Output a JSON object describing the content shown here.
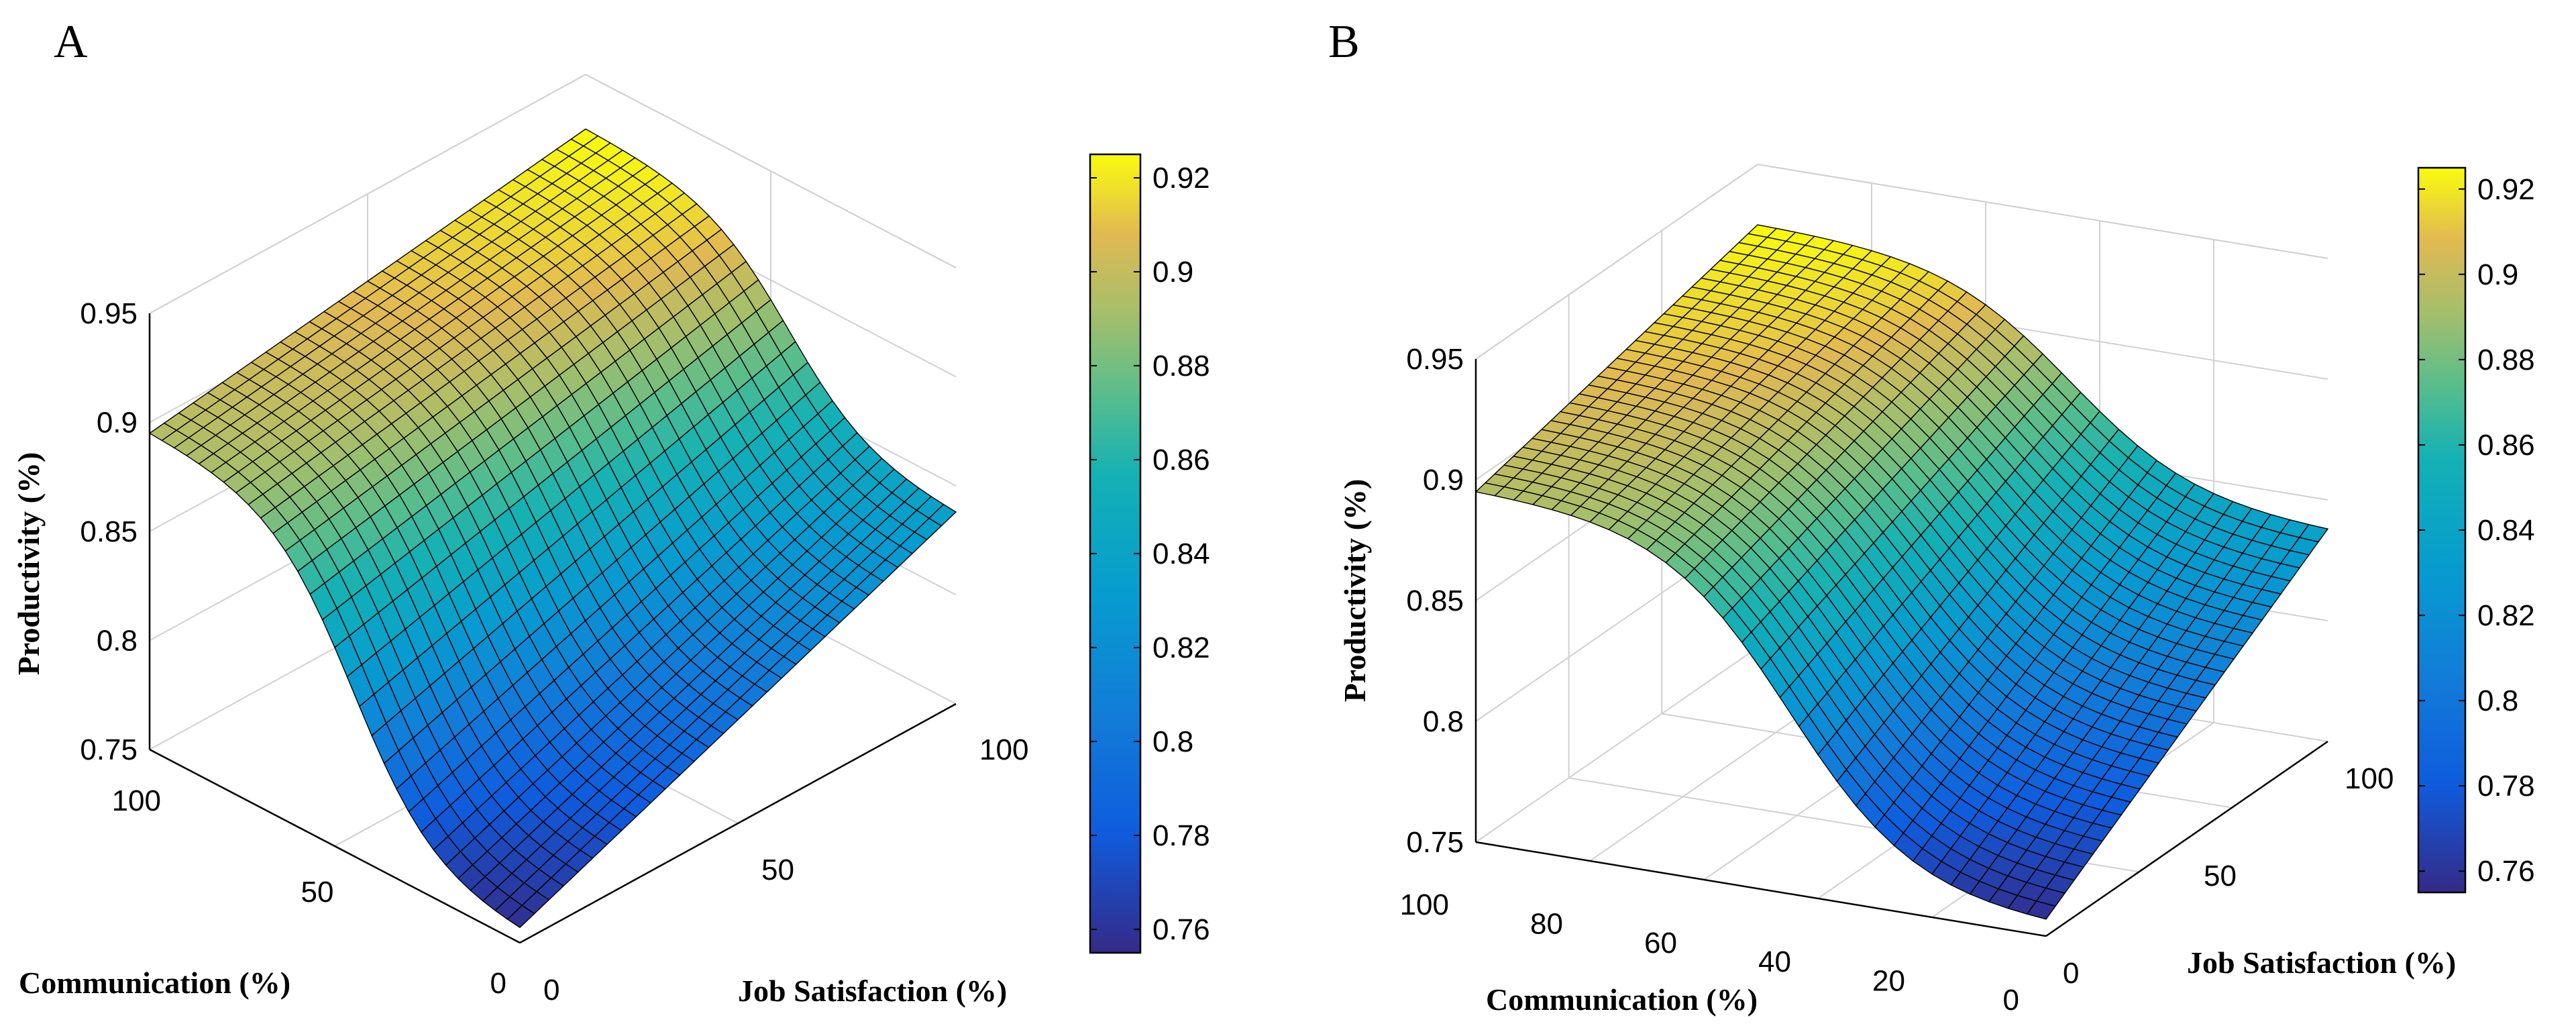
{
  "chart_data": [
    {
      "type": "surface",
      "panel": "A",
      "zlabel": "Productivity (%)",
      "xlabel": "Communication (%)",
      "ylabel": "Job Satisfaction (%)",
      "zlim": [
        0.75,
        0.95
      ],
      "z_ticks": [
        "0.75",
        "0.8",
        "0.85",
        "0.9",
        "0.95"
      ],
      "x_ticks": [
        "0",
        "50",
        "100"
      ],
      "y_ticks": [
        "0",
        "50",
        "100"
      ],
      "colorbar_ticks": [
        "0.76",
        "0.78",
        "0.8",
        "0.82",
        "0.84",
        "0.86",
        "0.88",
        "0.9",
        "0.92"
      ],
      "colorbar_range": [
        0.755,
        0.925
      ],
      "corner_values": {
        "comm0_js0": 0.757,
        "comm0_js100": 0.838,
        "comm100_js0": 0.895,
        "comm100_js100": 0.925
      },
      "grid": true
    },
    {
      "type": "surface",
      "panel": "B",
      "zlabel": "Productivity (%)",
      "xlabel": "Communication (%)",
      "ylabel": "Job Satisfaction (%)",
      "zlim": [
        0.75,
        0.95
      ],
      "z_ticks": [
        "0.75",
        "0.8",
        "0.85",
        "0.9",
        "0.95"
      ],
      "x_ticks": [
        "0",
        "20",
        "40",
        "60",
        "80",
        "100"
      ],
      "y_ticks": [
        "0",
        "50",
        "100"
      ],
      "colorbar_ticks": [
        "0.76",
        "0.78",
        "0.8",
        "0.82",
        "0.84",
        "0.86",
        "0.88",
        "0.9",
        "0.92"
      ],
      "colorbar_range": [
        0.755,
        0.925
      ],
      "corner_values": {
        "comm0_js0": 0.757,
        "comm0_js100": 0.838,
        "comm100_js0": 0.895,
        "comm100_js100": 0.925
      },
      "grid": true
    }
  ]
}
